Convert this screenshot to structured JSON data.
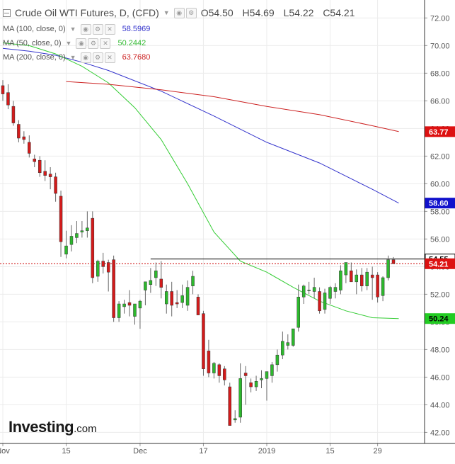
{
  "header": {
    "title": "Crude Oil WTI Futures, D, (CFD)",
    "open": "O54.50",
    "high": "H54.69",
    "low": "L54.22",
    "close": "C54.21"
  },
  "indicators": [
    {
      "label": "MA (100, close, 0)",
      "value": "58.5969",
      "color": "#3333cc"
    },
    {
      "label": "MA (50, close, 0)",
      "value": "50.2442",
      "color": "#33cc33"
    },
    {
      "label": "MA (200, close, 0)",
      "value": "63.7680",
      "color": "#cc2222"
    }
  ],
  "logo": {
    "main": "Investing",
    "suffix": ".com"
  },
  "chart_data": {
    "type": "candlestick",
    "ylim": [
      41.2,
      73.3
    ],
    "y_ticks": [
      42,
      44,
      46,
      48,
      50,
      52,
      54,
      56,
      58,
      60,
      62,
      64,
      66,
      68,
      70,
      72
    ],
    "x_labels": [
      "Nov",
      "15",
      "Dec",
      "17",
      "2019",
      "15",
      "29"
    ],
    "candles": [
      {
        "o": 67.1,
        "h": 67.5,
        "l": 66.0,
        "c": 66.5
      },
      {
        "o": 66.6,
        "h": 67.2,
        "l": 65.4,
        "c": 65.7
      },
      {
        "o": 65.6,
        "h": 66.0,
        "l": 64.2,
        "c": 64.4
      },
      {
        "o": 64.3,
        "h": 64.6,
        "l": 63.0,
        "c": 63.3
      },
      {
        "o": 63.4,
        "h": 63.8,
        "l": 62.9,
        "c": 63.2
      },
      {
        "o": 63.0,
        "h": 63.5,
        "l": 61.9,
        "c": 62.2
      },
      {
        "o": 61.8,
        "h": 62.1,
        "l": 61.2,
        "c": 61.6
      },
      {
        "o": 61.7,
        "h": 62.0,
        "l": 60.5,
        "c": 60.8
      },
      {
        "o": 60.9,
        "h": 61.7,
        "l": 60.2,
        "c": 60.6
      },
      {
        "o": 60.7,
        "h": 61.2,
        "l": 59.6,
        "c": 60.5
      },
      {
        "o": 60.5,
        "h": 60.8,
        "l": 58.7,
        "c": 59.3
      },
      {
        "o": 59.1,
        "h": 59.5,
        "l": 54.7,
        "c": 55.8
      },
      {
        "o": 54.9,
        "h": 56.6,
        "l": 54.6,
        "c": 55.5
      },
      {
        "o": 55.6,
        "h": 57.0,
        "l": 55.1,
        "c": 56.2
      },
      {
        "o": 56.1,
        "h": 57.3,
        "l": 55.7,
        "c": 56.4
      },
      {
        "o": 56.5,
        "h": 57.3,
        "l": 56.1,
        "c": 56.6
      },
      {
        "o": 56.6,
        "h": 58.0,
        "l": 56.1,
        "c": 56.8
      },
      {
        "o": 57.5,
        "h": 58.0,
        "l": 52.8,
        "c": 53.2
      },
      {
        "o": 53.3,
        "h": 54.5,
        "l": 52.9,
        "c": 54.4
      },
      {
        "o": 54.4,
        "h": 55.0,
        "l": 53.5,
        "c": 54.0
      },
      {
        "o": 54.3,
        "h": 54.5,
        "l": 52.2,
        "c": 53.6
      },
      {
        "o": 54.5,
        "h": 54.8,
        "l": 50.0,
        "c": 50.3
      },
      {
        "o": 50.3,
        "h": 51.5,
        "l": 50.0,
        "c": 51.3
      },
      {
        "o": 51.1,
        "h": 51.6,
        "l": 50.6,
        "c": 51.3
      },
      {
        "o": 51.4,
        "h": 52.3,
        "l": 50.4,
        "c": 51.2
      },
      {
        "o": 50.4,
        "h": 51.3,
        "l": 49.8,
        "c": 51.3
      },
      {
        "o": 51.0,
        "h": 51.6,
        "l": 49.5,
        "c": 51.5
      },
      {
        "o": 52.3,
        "h": 52.9,
        "l": 51.2,
        "c": 52.9
      },
      {
        "o": 52.7,
        "h": 53.9,
        "l": 52.1,
        "c": 53.0
      },
      {
        "o": 53.2,
        "h": 54.3,
        "l": 52.6,
        "c": 53.7
      },
      {
        "o": 53.1,
        "h": 54.4,
        "l": 51.7,
        "c": 52.5
      },
      {
        "o": 51.3,
        "h": 52.7,
        "l": 50.6,
        "c": 52.2
      },
      {
        "o": 52.2,
        "h": 52.9,
        "l": 50.4,
        "c": 51.2
      },
      {
        "o": 51.4,
        "h": 52.3,
        "l": 51.0,
        "c": 51.3
      },
      {
        "o": 51.4,
        "h": 52.7,
        "l": 51.0,
        "c": 51.9
      },
      {
        "o": 51.2,
        "h": 53.0,
        "l": 50.8,
        "c": 52.5
      },
      {
        "o": 52.6,
        "h": 53.7,
        "l": 52.0,
        "c": 53.3
      },
      {
        "o": 51.8,
        "h": 52.0,
        "l": 50.5,
        "c": 50.5
      },
      {
        "o": 50.6,
        "h": 50.8,
        "l": 46.1,
        "c": 46.6
      },
      {
        "o": 47.9,
        "h": 48.7,
        "l": 46.0,
        "c": 46.3
      },
      {
        "o": 46.3,
        "h": 47.1,
        "l": 45.9,
        "c": 47.0
      },
      {
        "o": 46.9,
        "h": 47.0,
        "l": 45.6,
        "c": 46.1
      },
      {
        "o": 46.6,
        "h": 46.8,
        "l": 45.4,
        "c": 45.8
      },
      {
        "o": 45.3,
        "h": 45.6,
        "l": 42.5,
        "c": 42.5
      },
      {
        "o": 42.9,
        "h": 43.6,
        "l": 42.7,
        "c": 43.0
      },
      {
        "o": 43.1,
        "h": 47.0,
        "l": 42.7,
        "c": 45.9
      },
      {
        "o": 46.3,
        "h": 46.8,
        "l": 44.0,
        "c": 46.1
      },
      {
        "o": 45.6,
        "h": 45.9,
        "l": 44.9,
        "c": 45.3
      },
      {
        "o": 45.3,
        "h": 46.1,
        "l": 45.0,
        "c": 45.7
      },
      {
        "o": 45.8,
        "h": 46.5,
        "l": 45.2,
        "c": 45.9
      },
      {
        "o": 45.9,
        "h": 46.3,
        "l": 44.3,
        "c": 46.4
      },
      {
        "o": 46.1,
        "h": 47.1,
        "l": 45.6,
        "c": 46.9
      },
      {
        "o": 46.9,
        "h": 48.0,
        "l": 46.4,
        "c": 47.6
      },
      {
        "o": 47.6,
        "h": 49.3,
        "l": 47.3,
        "c": 48.6
      },
      {
        "o": 48.3,
        "h": 49.1,
        "l": 48.0,
        "c": 48.5
      },
      {
        "o": 48.3,
        "h": 49.5,
        "l": 48.2,
        "c": 49.5
      },
      {
        "o": 49.6,
        "h": 52.7,
        "l": 49.3,
        "c": 51.8
      },
      {
        "o": 51.8,
        "h": 52.7,
        "l": 51.3,
        "c": 52.6
      },
      {
        "o": 52.3,
        "h": 52.9,
        "l": 52.0,
        "c": 52.3
      },
      {
        "o": 52.2,
        "h": 53.2,
        "l": 51.7,
        "c": 52.5
      },
      {
        "o": 52.2,
        "h": 52.5,
        "l": 50.6,
        "c": 50.8
      },
      {
        "o": 50.9,
        "h": 52.4,
        "l": 50.6,
        "c": 52.1
      },
      {
        "o": 51.7,
        "h": 52.6,
        "l": 51.3,
        "c": 52.5
      },
      {
        "o": 52.2,
        "h": 52.8,
        "l": 51.7,
        "c": 52.5
      },
      {
        "o": 52.3,
        "h": 54.1,
        "l": 52.0,
        "c": 53.7
      },
      {
        "o": 53.4,
        "h": 54.3,
        "l": 52.8,
        "c": 54.3
      },
      {
        "o": 53.7,
        "h": 54.3,
        "l": 53.0,
        "c": 52.9
      },
      {
        "o": 52.9,
        "h": 53.8,
        "l": 52.0,
        "c": 53.4
      },
      {
        "o": 53.4,
        "h": 53.9,
        "l": 52.2,
        "c": 52.6
      },
      {
        "o": 52.6,
        "h": 53.9,
        "l": 52.3,
        "c": 53.6
      },
      {
        "o": 53.4,
        "h": 54.0,
        "l": 51.6,
        "c": 53.2
      },
      {
        "o": 53.4,
        "h": 53.6,
        "l": 51.4,
        "c": 51.8
      },
      {
        "o": 51.9,
        "h": 53.3,
        "l": 51.5,
        "c": 53.2
      },
      {
        "o": 53.2,
        "h": 54.8,
        "l": 53.0,
        "c": 54.5
      },
      {
        "o": 54.5,
        "h": 54.69,
        "l": 54.22,
        "c": 54.21
      }
    ],
    "ma_lines": [
      {
        "name": "MA (100, close, 0)",
        "color": "#3333cc",
        "points": [
          [
            0,
            69.8
          ],
          [
            5,
            69.6
          ],
          [
            10,
            69.3
          ],
          [
            15,
            68.8
          ],
          [
            20,
            68.2
          ],
          [
            30,
            66.7
          ],
          [
            40,
            64.9
          ],
          [
            50,
            63.0
          ],
          [
            60,
            61.5
          ],
          [
            70,
            59.6
          ],
          [
            75,
            58.6
          ]
        ]
      },
      {
        "name": "MA (50, close, 0)",
        "color": "#33cc33",
        "points": [
          [
            0,
            70.2
          ],
          [
            5,
            70.0
          ],
          [
            10,
            69.4
          ],
          [
            15,
            68.5
          ],
          [
            20,
            67.3
          ],
          [
            25,
            65.5
          ],
          [
            30,
            63.2
          ],
          [
            35,
            60.0
          ],
          [
            40,
            56.5
          ],
          [
            45,
            54.4
          ],
          [
            50,
            53.6
          ],
          [
            55,
            52.5
          ],
          [
            60,
            51.5
          ],
          [
            65,
            50.8
          ],
          [
            70,
            50.3
          ],
          [
            75,
            50.24
          ]
        ]
      },
      {
        "name": "MA (200, close, 0)",
        "color": "#cc2222",
        "points": [
          [
            12,
            67.4
          ],
          [
            20,
            67.2
          ],
          [
            30,
            66.8
          ],
          [
            40,
            66.3
          ],
          [
            50,
            65.6
          ],
          [
            60,
            65.0
          ],
          [
            70,
            64.2
          ],
          [
            75,
            63.77
          ]
        ]
      }
    ],
    "resistance": {
      "value": 54.55,
      "from_index": 28,
      "color": "#000000"
    },
    "last_price_line": {
      "value": 54.21,
      "color": "#cc0000"
    },
    "price_labels": [
      {
        "text": "63.77",
        "value": 63.77,
        "bg": "#dd1111",
        "color": "#ffffff"
      },
      {
        "text": "58.60",
        "value": 58.6,
        "bg": "#1111cc",
        "color": "#ffffff"
      },
      {
        "text": "54.55",
        "value": 54.55,
        "bg": "#ffffff",
        "color": "#000000",
        "border": "#000000"
      },
      {
        "text": "54.21",
        "value": 54.21,
        "bg": "#dd1111",
        "color": "#ffffff"
      },
      {
        "text": "50.24",
        "value": 50.24,
        "bg": "#22cc22",
        "color": "#000000"
      }
    ],
    "colors": {
      "up": "#2db82d",
      "down": "#d41b1b",
      "grid": "#ececec",
      "axis_text": "#555555"
    }
  }
}
